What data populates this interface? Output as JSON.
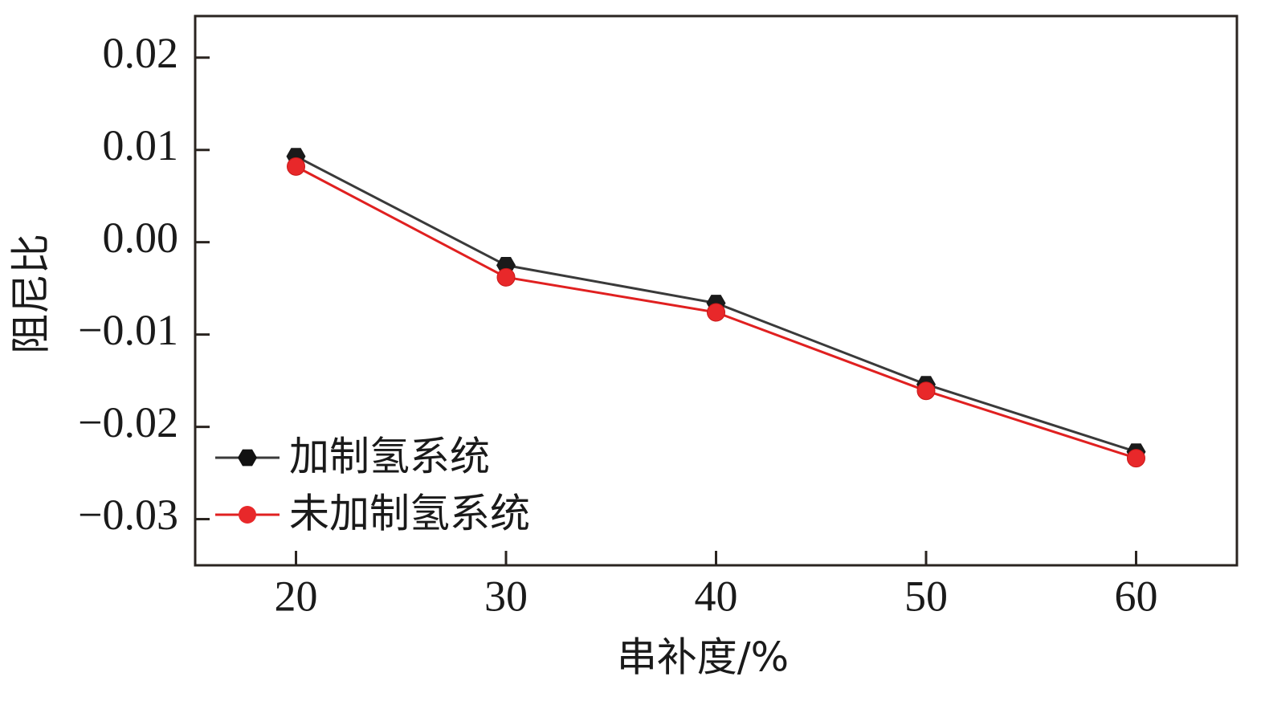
{
  "chart_data": {
    "type": "line",
    "title": "",
    "xlabel": "串补度/%",
    "ylabel": "阻尼比",
    "x": [
      20,
      30,
      40,
      50,
      60
    ],
    "xticks": [
      "20",
      "30",
      "40",
      "50",
      "60"
    ],
    "xlim": [
      15.2,
      64.8
    ],
    "yticks": [
      "0.02",
      "0.01",
      "0.00",
      "−0.01",
      "−0.02",
      "−0.03"
    ],
    "ytick_values": [
      0.02,
      0.01,
      0.0,
      -0.01,
      -0.02,
      -0.03
    ],
    "ylim": [
      -0.035,
      0.0245
    ],
    "grid": false,
    "legend": "lower-left",
    "series": [
      {
        "name": "加制氢系统",
        "values": [
          0.0093,
          -0.0025,
          -0.0066,
          -0.0154,
          -0.0227
        ],
        "color": "#1a1a1a",
        "line_color": "#3a3a3a",
        "marker": "hexagon"
      },
      {
        "name": "未加制氢系统",
        "values": [
          0.0082,
          -0.0038,
          -0.0076,
          -0.0161,
          -0.0234
        ],
        "color": "#e02020",
        "line_color": "#e02020",
        "marker": "circle"
      }
    ]
  }
}
